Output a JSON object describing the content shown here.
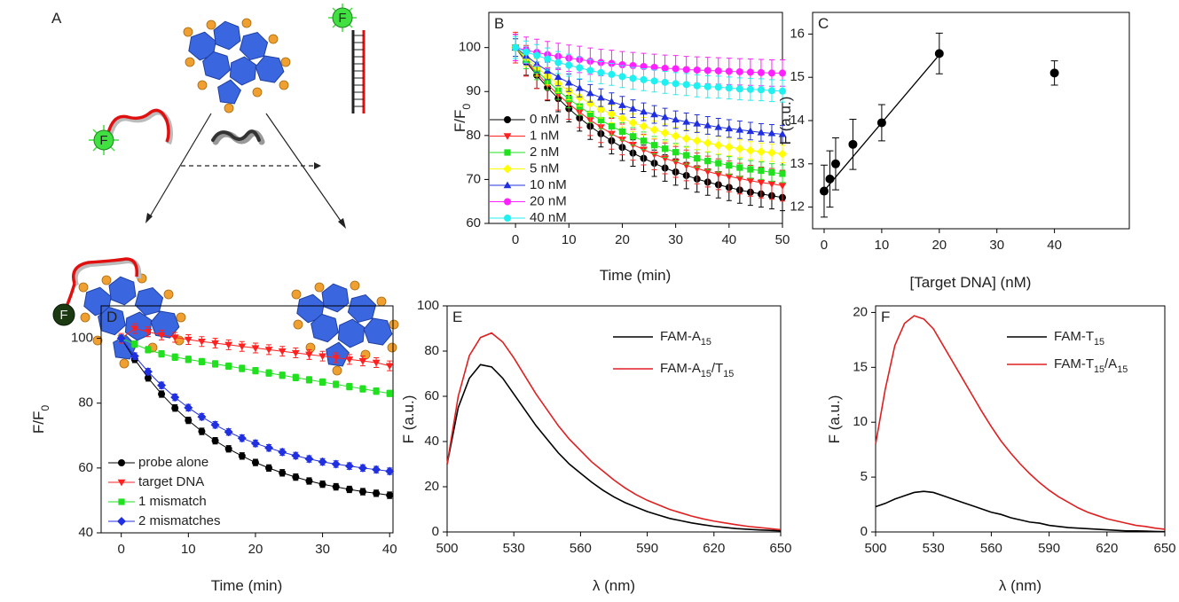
{
  "diagram": {
    "label": "A",
    "fluorophore_labels": [
      "F",
      "F",
      "F"
    ]
  },
  "chart_data": [
    {
      "type": "line",
      "label": "B",
      "xlabel": "Time (min)",
      "ylabel": "F/F0",
      "xlim": [
        -5,
        50
      ],
      "ylim": [
        60,
        108
      ],
      "xticks": [
        0,
        10,
        20,
        30,
        40,
        50
      ],
      "yticks": [
        60,
        70,
        80,
        90,
        100
      ],
      "x": [
        0,
        2,
        4,
        6,
        8,
        10,
        12,
        14,
        16,
        18,
        20,
        22,
        24,
        26,
        28,
        30,
        32,
        34,
        36,
        38,
        40,
        42,
        44,
        46,
        48,
        50
      ],
      "series": [
        {
          "name": "0 nM",
          "color": "#000000",
          "marker": "circle",
          "error": 3,
          "values": [
            100,
            96.7,
            93.7,
            90.9,
            88.4,
            86.1,
            84.0,
            82.1,
            80.4,
            78.8,
            77.3,
            76.0,
            74.8,
            73.7,
            72.6,
            71.7,
            70.9,
            70.1,
            69.4,
            68.8,
            68.2,
            67.6,
            67.1,
            66.7,
            66.3,
            65.9
          ]
        },
        {
          "name": "1 nM",
          "color": "#ff2020",
          "marker": "triangle-down",
          "error": 3.5,
          "values": [
            100,
            97.0,
            94.2,
            91.6,
            89.3,
            87.2,
            85.3,
            83.5,
            81.9,
            80.4,
            79.1,
            77.9,
            76.8,
            75.7,
            74.8,
            74.0,
            73.2,
            72.5,
            71.8,
            71.2,
            70.7,
            70.2,
            69.7,
            69.3,
            69.0,
            68.6
          ]
        },
        {
          "name": "2 nM",
          "color": "#20e020",
          "marker": "square",
          "error": 2,
          "values": [
            100,
            97.2,
            94.7,
            92.4,
            90.2,
            88.3,
            86.6,
            84.9,
            83.5,
            82.1,
            80.9,
            79.8,
            78.8,
            77.8,
            77.0,
            76.2,
            75.5,
            74.8,
            74.2,
            73.7,
            73.2,
            72.7,
            72.3,
            72.0,
            71.6,
            71.3
          ]
        },
        {
          "name": "5 nM",
          "color": "#ffff00",
          "marker": "diamond",
          "error": 2,
          "values": [
            100,
            97.7,
            95.5,
            93.5,
            91.8,
            90.1,
            88.7,
            87.3,
            86.0,
            84.9,
            83.9,
            82.9,
            82.1,
            81.3,
            80.6,
            79.9,
            79.3,
            78.8,
            78.3,
            77.8,
            77.4,
            77.0,
            76.6,
            76.3,
            76.1,
            75.8
          ]
        },
        {
          "name": "10 nM",
          "color": "#2030e0",
          "marker": "triangle-up",
          "error": 2,
          "values": [
            100,
            98.1,
            96.3,
            94.7,
            93.3,
            92.0,
            90.8,
            89.6,
            88.6,
            87.7,
            86.9,
            86.1,
            85.4,
            84.8,
            84.2,
            83.6,
            83.1,
            82.7,
            82.3,
            81.9,
            81.6,
            81.3,
            81.0,
            80.7,
            80.5,
            80.3
          ]
        },
        {
          "name": "20 nM",
          "color": "#ff20ff",
          "marker": "circle",
          "error": 3,
          "values": [
            100,
            99.4,
            98.9,
            98.4,
            98.0,
            97.6,
            97.3,
            96.9,
            96.6,
            96.4,
            96.1,
            95.9,
            95.7,
            95.5,
            95.3,
            95.2,
            95.0,
            94.9,
            94.8,
            94.7,
            94.6,
            94.5,
            94.4,
            94.3,
            94.2,
            94.2
          ]
        },
        {
          "name": "40 nM",
          "color": "#20f0f0",
          "marker": "circle",
          "error": 2.5,
          "values": [
            100,
            99.0,
            98.2,
            97.4,
            96.6,
            96.0,
            95.4,
            94.8,
            94.3,
            93.9,
            93.4,
            93.0,
            92.7,
            92.4,
            92.1,
            91.8,
            91.6,
            91.3,
            91.1,
            91.0,
            90.8,
            90.6,
            90.5,
            90.4,
            90.2,
            90.1
          ]
        }
      ]
    },
    {
      "type": "scatter",
      "label": "C",
      "xlabel": "[Target DNA] (nM)",
      "ylabel": "F (a.u.)",
      "xlim": [
        -2,
        53
      ],
      "ylim": [
        11.5,
        16.5
      ],
      "xticks": [
        0,
        10,
        20,
        30,
        40
      ],
      "yticks": [
        12,
        13,
        14,
        15,
        16
      ],
      "x": [
        0,
        1,
        2,
        5,
        10,
        20,
        40
      ],
      "series": [
        {
          "color": "#000000",
          "marker": "circle",
          "values": [
            12.37,
            12.65,
            13.0,
            13.45,
            13.95,
            15.55,
            15.1
          ],
          "errors": [
            0.6,
            0.65,
            0.6,
            0.58,
            0.42,
            0.47,
            0.28
          ]
        }
      ],
      "fit": {
        "x": [
          0,
          20
        ],
        "values": [
          12.38,
          15.52
        ]
      }
    },
    {
      "type": "line",
      "label": "D",
      "xlabel": "Time (min)",
      "ylabel": "F/F0",
      "xlim": [
        -3,
        40.5
      ],
      "ylim": [
        40,
        110
      ],
      "xticks": [
        0,
        10,
        20,
        30,
        40
      ],
      "yticks": [
        40,
        60,
        80,
        100
      ],
      "x": [
        0,
        2,
        4,
        6,
        8,
        10,
        12,
        14,
        16,
        18,
        20,
        22,
        24,
        26,
        28,
        30,
        32,
        34,
        36,
        38,
        40
      ],
      "series": [
        {
          "name": "probe alone",
          "color": "#000000",
          "marker": "circle",
          "error": 1,
          "values": [
            100,
            93.5,
            87.8,
            82.8,
            78.5,
            74.7,
            71.3,
            68.4,
            65.9,
            63.7,
            61.7,
            60.0,
            58.5,
            57.2,
            56.0,
            55.0,
            54.2,
            53.4,
            52.7,
            52.2,
            51.6
          ]
        },
        {
          "name": "target DNA",
          "color": "#ff2020",
          "marker": "triangle-down",
          "error": 1.5,
          "values": [
            100,
            103,
            102,
            101,
            100.3,
            99.6,
            99,
            98.5,
            98,
            97.5,
            97,
            96.5,
            96,
            95.5,
            95,
            94.5,
            94,
            93.5,
            93,
            92.5,
            91.5
          ]
        },
        {
          "name": "1 mismatch",
          "color": "#20e020",
          "marker": "square",
          "error": 1,
          "values": [
            100,
            98.2,
            96.5,
            95.2,
            94.2,
            93.5,
            92.8,
            92.1,
            91.4,
            90.7,
            90.0,
            89.3,
            88.6,
            87.9,
            87.2,
            86.5,
            85.8,
            85.1,
            84.4,
            83.7,
            83.0
          ]
        },
        {
          "name": "2 mismatches",
          "color": "#2030e0",
          "marker": "diamond",
          "error": 1,
          "values": [
            100,
            94.5,
            89.7,
            85.5,
            81.8,
            78.6,
            75.8,
            73.3,
            71.1,
            69.2,
            67.6,
            66.2,
            64.9,
            63.8,
            62.8,
            61.9,
            61.2,
            60.6,
            60.0,
            59.5,
            59.0
          ]
        }
      ]
    },
    {
      "type": "line",
      "label": "E",
      "xlabel": "λ (nm)",
      "ylabel": "F (a.u.)",
      "xlim": [
        500,
        650
      ],
      "ylim": [
        0,
        100
      ],
      "xticks": [
        500,
        530,
        560,
        590,
        620,
        650
      ],
      "yticks": [
        0,
        20,
        40,
        60,
        80,
        100
      ],
      "x": [
        500,
        505,
        510,
        515,
        520,
        525,
        530,
        535,
        540,
        545,
        550,
        555,
        560,
        565,
        570,
        575,
        580,
        585,
        590,
        595,
        600,
        605,
        610,
        615,
        620,
        625,
        630,
        635,
        640,
        645,
        650
      ],
      "series": [
        {
          "name": "FAM-A15",
          "color": "#000000",
          "values": [
            30,
            55,
            68,
            74,
            73,
            68,
            61,
            54,
            47,
            41,
            35,
            30,
            26,
            22,
            18.5,
            15.5,
            13,
            11,
            9,
            7.5,
            6,
            5,
            4,
            3.2,
            2.5,
            2,
            1.5,
            1.2,
            0.9,
            0.7,
            0.5
          ]
        },
        {
          "name": "FAM-A15/T15",
          "color": "#e02020",
          "values": [
            30,
            60,
            78,
            86,
            88,
            84,
            77,
            69,
            61,
            54,
            47,
            41,
            36,
            31,
            27,
            23,
            19.5,
            16.5,
            14,
            12,
            10,
            8.5,
            7,
            5.8,
            4.8,
            4,
            3.2,
            2.5,
            2,
            1.5,
            1
          ]
        }
      ]
    },
    {
      "type": "line",
      "label": "F",
      "xlabel": "λ (nm)",
      "ylabel": "F (a.u.)",
      "xlim": [
        500,
        650
      ],
      "ylim": [
        0,
        20.6
      ],
      "xticks": [
        500,
        530,
        560,
        590,
        620,
        650
      ],
      "yticks": [
        0,
        5,
        10,
        15,
        20
      ],
      "x": [
        500,
        505,
        510,
        515,
        520,
        525,
        530,
        535,
        540,
        545,
        550,
        555,
        560,
        565,
        570,
        575,
        580,
        585,
        590,
        595,
        600,
        605,
        610,
        615,
        620,
        625,
        630,
        635,
        640,
        645,
        650
      ],
      "series": [
        {
          "name": "FAM-T15",
          "color": "#000000",
          "values": [
            2.3,
            2.6,
            3.0,
            3.3,
            3.6,
            3.7,
            3.6,
            3.3,
            3.0,
            2.7,
            2.4,
            2.1,
            1.8,
            1.6,
            1.3,
            1.1,
            0.9,
            0.8,
            0.6,
            0.5,
            0.4,
            0.35,
            0.3,
            0.25,
            0.2,
            0.15,
            0.1,
            0.1,
            0.08,
            0.05,
            0.03
          ]
        },
        {
          "name": "FAM-T15/A15",
          "color": "#e02020",
          "values": [
            8,
            13,
            17,
            19,
            19.7,
            19.4,
            18.5,
            17,
            15.5,
            14,
            12.5,
            11,
            9.6,
            8.3,
            7.2,
            6.2,
            5.3,
            4.5,
            3.8,
            3.2,
            2.7,
            2.2,
            1.8,
            1.5,
            1.2,
            1,
            0.8,
            0.6,
            0.5,
            0.35,
            0.25
          ]
        }
      ]
    }
  ]
}
